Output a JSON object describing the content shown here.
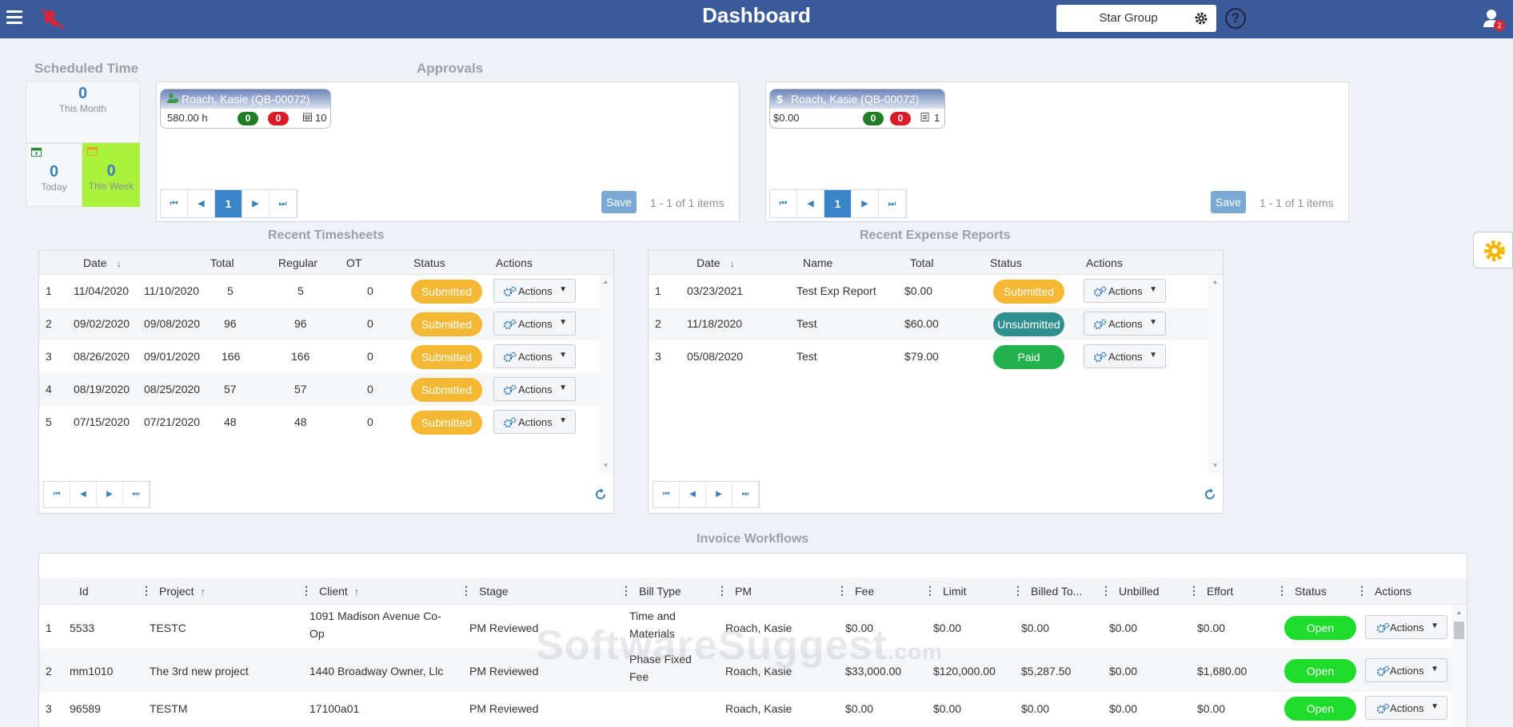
{
  "topbar": {
    "title": "Dashboard",
    "org_select": "Star Group",
    "help": "?",
    "notifications": "2"
  },
  "scheduled": {
    "title": "Scheduled Time",
    "month_value": "0",
    "month_label": "This Month",
    "today_value": "0",
    "today_label": "Today",
    "week_value": "0",
    "week_label": "This Week"
  },
  "approvals": {
    "title": "Approvals",
    "time": {
      "name": "Roach, Kasie (QB-00072)",
      "amount": "580.00 h",
      "green": "0",
      "red": "0",
      "count": "10",
      "save": "Save",
      "page": "1",
      "info": "1 - 1 of 1 items"
    },
    "expense": {
      "name": "Roach, Kasie (QB-00072)",
      "amount": "$0.00",
      "green": "0",
      "red": "0",
      "count": "1",
      "save": "Save",
      "page": "1",
      "info": "1 - 1 of 1 items"
    }
  },
  "timesheets": {
    "title": "Recent Timesheets",
    "headers": {
      "date": "Date",
      "total": "Total",
      "regular": "Regular",
      "ot": "OT",
      "status": "Status",
      "actions": "Actions"
    },
    "rows": [
      {
        "n": "1",
        "start": "11/04/2020",
        "end": "11/10/2020",
        "total": "5",
        "regular": "5",
        "ot": "0",
        "status": "Submitted",
        "action": "Actions"
      },
      {
        "n": "2",
        "start": "09/02/2020",
        "end": "09/08/2020",
        "total": "96",
        "regular": "96",
        "ot": "0",
        "status": "Submitted",
        "action": "Actions"
      },
      {
        "n": "3",
        "start": "08/26/2020",
        "end": "09/01/2020",
        "total": "166",
        "regular": "166",
        "ot": "0",
        "status": "Submitted",
        "action": "Actions"
      },
      {
        "n": "4",
        "start": "08/19/2020",
        "end": "08/25/2020",
        "total": "57",
        "regular": "57",
        "ot": "0",
        "status": "Submitted",
        "action": "Actions"
      },
      {
        "n": "5",
        "start": "07/15/2020",
        "end": "07/21/2020",
        "total": "48",
        "regular": "48",
        "ot": "0",
        "status": "Submitted",
        "action": "Actions"
      }
    ]
  },
  "expenses": {
    "title": "Recent Expense Reports",
    "headers": {
      "date": "Date",
      "name": "Name",
      "total": "Total",
      "status": "Status",
      "actions": "Actions"
    },
    "rows": [
      {
        "n": "1",
        "date": "03/23/2021",
        "name": "Test Exp Report",
        "total": "$0.00",
        "status": "Submitted",
        "action": "Actions"
      },
      {
        "n": "2",
        "date": "11/18/2020",
        "name": "Test",
        "total": "$60.00",
        "status": "Unsubmitted",
        "action": "Actions"
      },
      {
        "n": "3",
        "date": "05/08/2020",
        "name": "Test",
        "total": "$79.00",
        "status": "Paid",
        "action": "Actions"
      }
    ]
  },
  "invoices": {
    "title": "Invoice Workflows",
    "headers": {
      "id": "Id",
      "project": "Project",
      "client": "Client",
      "stage": "Stage",
      "bill_type": "Bill Type",
      "pm": "PM",
      "fee": "Fee",
      "limit": "Limit",
      "billed": "Billed To...",
      "unbilled": "Unbilled",
      "effort": "Effort",
      "status": "Status",
      "actions": "Actions"
    },
    "rows": [
      {
        "n": "1",
        "id": "5533",
        "project": "TESTC",
        "client1": "1091 Madison Avenue Co-",
        "client2": "Op",
        "stage": "PM Reviewed",
        "bill1": "Time and",
        "bill2": "Materials",
        "pm": "Roach, Kasie",
        "fee": "$0.00",
        "limit": "$0.00",
        "billed": "$0.00",
        "unbilled": "$0.00",
        "effort": "$0.00",
        "status": "Open",
        "action": "Actions"
      },
      {
        "n": "2",
        "id": "mm1010",
        "project": "The 3rd new project",
        "client1": "1440 Broadway Owner, Llc",
        "client2": "",
        "stage": "PM Reviewed",
        "bill1": "Phase Fixed",
        "bill2": "Fee",
        "pm": "Roach, Kasie",
        "fee": "$33,000.00",
        "limit": "$120,000.00",
        "billed": "$5,287.50",
        "unbilled": "$0.00",
        "effort": "$1,680.00",
        "status": "Open",
        "action": "Actions"
      },
      {
        "n": "3",
        "id": "96589",
        "project": "TESTM",
        "client1": "17100a01",
        "client2": "",
        "stage": "PM Reviewed",
        "bill1": "",
        "bill2": "",
        "pm": "Roach, Kasie",
        "fee": "$0.00",
        "limit": "$0.00",
        "billed": "$0.00",
        "unbilled": "$0.00",
        "effort": "$0.00",
        "status": "Open",
        "action": "Actions"
      }
    ]
  },
  "watermark": {
    "main": "SoftwareSuggest",
    "suffix": ".com"
  },
  "colors": {
    "topbar": "#3b5a9a",
    "submitted": "#f5b834",
    "unsubmitted": "#2f8f8f",
    "paid": "#22b14c",
    "open": "#1ddc2a",
    "this_week": "#aaf23d"
  }
}
